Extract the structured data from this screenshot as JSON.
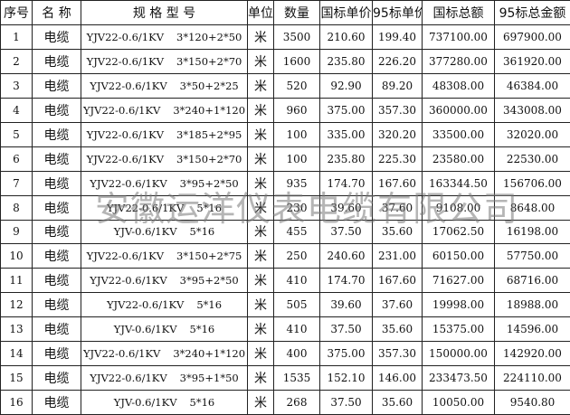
{
  "headers": [
    "序号",
    "名 称",
    "规 格 型 号",
    "单位",
    "数量",
    "国标单价",
    "95标单价",
    "国标总额",
    "95标总金额"
  ],
  "rows": [
    {
      "no": "1",
      "name": "电缆",
      "model": "YJV22-0.6/1KV",
      "size": "3*120+2*50",
      "unit": "米",
      "qty": "3500",
      "gb_price": "210.60",
      "p95_price": "199.40",
      "gb_total": "737100.00",
      "p95_total": "697900.00"
    },
    {
      "no": "2",
      "name": "电缆",
      "model": "YJV22-0.6/1KV",
      "size": "3*150+2*70",
      "unit": "米",
      "qty": "1600",
      "gb_price": "235.80",
      "p95_price": "226.20",
      "gb_total": "377280.00",
      "p95_total": "361920.00"
    },
    {
      "no": "3",
      "name": "电缆",
      "model": "YJV22-0.6/1KV",
      "size": "3*50+2*25",
      "unit": "米",
      "qty": "520",
      "gb_price": "92.90",
      "p95_price": "89.20",
      "gb_total": "48308.00",
      "p95_total": "46384.00"
    },
    {
      "no": "4",
      "name": "电缆",
      "model": "YJV22-0.6/1KV",
      "size": "3*240+1*120",
      "unit": "米",
      "qty": "960",
      "gb_price": "375.00",
      "p95_price": "357.30",
      "gb_total": "360000.00",
      "p95_total": "343008.00"
    },
    {
      "no": "5",
      "name": "电缆",
      "model": "YJV22-0.6/1KV",
      "size": "3*185+2*95",
      "unit": "米",
      "qty": "100",
      "gb_price": "335.00",
      "p95_price": "320.20",
      "gb_total": "33500.00",
      "p95_total": "32020.00"
    },
    {
      "no": "6",
      "name": "电缆",
      "model": "YJV22-0.6/1KV",
      "size": "3*150+2*70",
      "unit": "米",
      "qty": "100",
      "gb_price": "235.80",
      "p95_price": "225.30",
      "gb_total": "23580.00",
      "p95_total": "22530.00"
    },
    {
      "no": "7",
      "name": "电缆",
      "model": "YJV22-0.6/1KV",
      "size": "3*95+2*50",
      "unit": "米",
      "qty": "935",
      "gb_price": "174.70",
      "p95_price": "167.60",
      "gb_total": "163344.50",
      "p95_total": "156706.00"
    },
    {
      "no": "8",
      "name": "电缆",
      "model": "YJV22-0.6/1KV",
      "size": "5*16",
      "unit": "米",
      "qty": "230",
      "gb_price": "39.60",
      "p95_price": "37.60",
      "gb_total": "9108.00",
      "p95_total": "8648.00"
    },
    {
      "no": "9",
      "name": "电缆",
      "model": "YJV-0.6/1KV",
      "size": "5*16",
      "unit": "米",
      "qty": "455",
      "gb_price": "37.50",
      "p95_price": "35.60",
      "gb_total": "17062.50",
      "p95_total": "16198.00"
    },
    {
      "no": "10",
      "name": "电缆",
      "model": "YJV22-0.6/1KV",
      "size": "3*150+2*75",
      "unit": "米",
      "qty": "250",
      "gb_price": "240.60",
      "p95_price": "231.00",
      "gb_total": "60150.00",
      "p95_total": "57750.00"
    },
    {
      "no": "11",
      "name": "电缆",
      "model": "YJV22-0.6/1KV",
      "size": "3*95+2*50",
      "unit": "米",
      "qty": "410",
      "gb_price": "174.70",
      "p95_price": "167.60",
      "gb_total": "71627.00",
      "p95_total": "68716.00"
    },
    {
      "no": "12",
      "name": "电缆",
      "model": "YJV22-0.6/1KV",
      "size": "5*16",
      "unit": "米",
      "qty": "505",
      "gb_price": "39.60",
      "p95_price": "37.60",
      "gb_total": "19998.00",
      "p95_total": "18988.00"
    },
    {
      "no": "13",
      "name": "电缆",
      "model": "YJV-0.6/1KV",
      "size": "5*16",
      "unit": "米",
      "qty": "410",
      "gb_price": "37.50",
      "p95_price": "35.60",
      "gb_total": "15375.00",
      "p95_total": "14596.00"
    },
    {
      "no": "14",
      "name": "电缆",
      "model": "YJV22-0.6/1KV",
      "size": "3*240+1*120",
      "unit": "米",
      "qty": "400",
      "gb_price": "375.00",
      "p95_price": "357.30",
      "gb_total": "150000.00",
      "p95_total": "142920.00"
    },
    {
      "no": "15",
      "name": "电缆",
      "model": "YJV22-0.6/1KV",
      "size": "3*95+1*50",
      "unit": "米",
      "qty": "1535",
      "gb_price": "152.10",
      "p95_price": "146.00",
      "gb_total": "233473.50",
      "p95_total": "224110.00"
    },
    {
      "no": "16",
      "name": "电缆",
      "model": "YJV-0.6/1KV",
      "size": "5*16",
      "unit": "米",
      "qty": "268",
      "gb_price": "37.50",
      "p95_price": "35.60",
      "gb_total": "10050.00",
      "p95_total": "9540.80"
    }
  ],
  "watermark": "安徽运洋仪表电缆有限公司"
}
